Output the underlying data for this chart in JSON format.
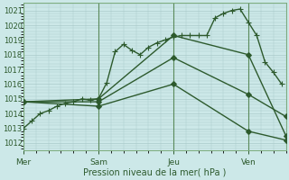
{
  "background_color": "#cce8e8",
  "grid_color": "#aacaca",
  "line_color": "#2d5a2d",
  "marker_color": "#2d5a2d",
  "xlabel": "Pression niveau de la mer( hPa )",
  "ylim": [
    1011.5,
    1021.5
  ],
  "yticks": [
    1012,
    1013,
    1014,
    1015,
    1016,
    1017,
    1018,
    1019,
    1020,
    1021
  ],
  "day_labels": [
    "Mer",
    "Sam",
    "Jeu",
    "Ven"
  ],
  "day_positions": [
    0,
    36,
    72,
    108
  ],
  "xlim": [
    0,
    126
  ],
  "vline_positions": [
    0,
    36,
    72,
    108
  ],
  "series": [
    {
      "x": [
        0,
        4,
        8,
        12,
        16,
        20,
        24,
        28,
        32,
        36,
        40,
        44,
        48,
        52,
        56,
        60,
        64,
        68,
        72,
        76,
        80,
        84,
        88,
        92,
        96,
        100,
        104,
        108,
        112,
        116,
        120,
        124
      ],
      "y": [
        1013.0,
        1013.5,
        1014.0,
        1014.2,
        1014.5,
        1014.7,
        1014.8,
        1015.0,
        1014.9,
        1015.0,
        1016.1,
        1018.2,
        1018.7,
        1018.3,
        1018.0,
        1018.5,
        1018.8,
        1019.0,
        1019.2,
        1019.3,
        1019.3,
        1019.3,
        1019.3,
        1020.5,
        1020.8,
        1021.0,
        1021.1,
        1020.2,
        1019.3,
        1017.5,
        1016.8,
        1016.0
      ],
      "marker": "+",
      "markersize": 4,
      "linewidth": 1.0
    },
    {
      "x": [
        0,
        36,
        72,
        108,
        126
      ],
      "y": [
        1014.8,
        1015.0,
        1019.3,
        1018.0,
        1012.5
      ],
      "marker": "D",
      "markersize": 3,
      "linewidth": 1.0
    },
    {
      "x": [
        0,
        36,
        72,
        108,
        126
      ],
      "y": [
        1014.8,
        1014.8,
        1017.8,
        1015.3,
        1013.8
      ],
      "marker": "D",
      "markersize": 3,
      "linewidth": 1.0
    },
    {
      "x": [
        0,
        36,
        72,
        108,
        126
      ],
      "y": [
        1014.8,
        1014.5,
        1016.0,
        1012.8,
        1012.2
      ],
      "marker": "D",
      "markersize": 3,
      "linewidth": 1.0
    }
  ],
  "figsize": [
    3.2,
    2.0
  ],
  "dpi": 100
}
